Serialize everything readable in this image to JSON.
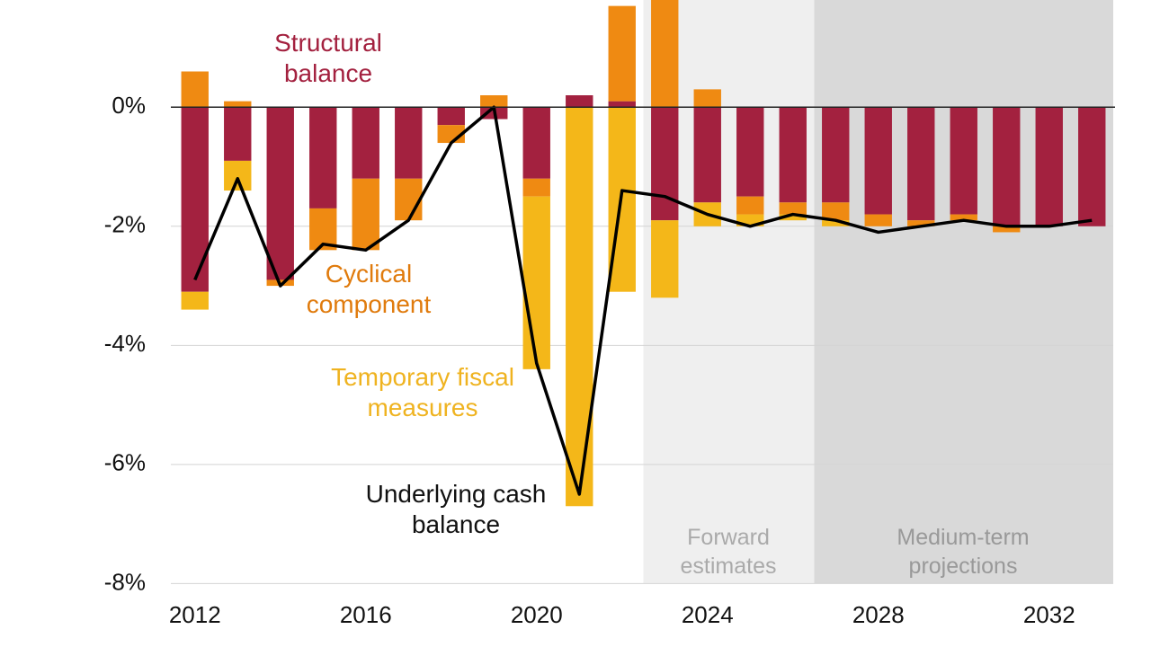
{
  "chart_data": {
    "type": "bar",
    "stacked": true,
    "categories": [
      "2012",
      null,
      null,
      null,
      "2016",
      null,
      null,
      null,
      "2020",
      null,
      null,
      null,
      "2024",
      null,
      null,
      null,
      "2028",
      null,
      null,
      null,
      "2032",
      null
    ],
    "series": [
      {
        "name": "Structural balance",
        "color": "#a3213f",
        "type": "bar",
        "values": [
          -3.1,
          -0.9,
          -2.9,
          -1.7,
          -1.2,
          -1.2,
          -0.3,
          -0.2,
          -1.2,
          0.2,
          0.1,
          -1.9,
          -1.6,
          -1.5,
          -1.6,
          -1.6,
          -1.8,
          -1.9,
          -1.8,
          -2.0,
          -2.0,
          -2.0
        ]
      },
      {
        "name": "Cyclical component",
        "color": "#ef8a12",
        "type": "bar",
        "values": [
          0.6,
          0.1,
          -0.1,
          -0.7,
          -1.2,
          -0.7,
          -0.3,
          0.2,
          -0.3,
          0,
          1.6,
          1.8,
          0.3,
          -0.3,
          -0.2,
          -0.3,
          -0.2,
          -0.1,
          -0.1,
          -0.1,
          0,
          0
        ]
      },
      {
        "name": "Temporary fiscal measures",
        "color": "#f4b719",
        "type": "bar",
        "values": [
          -0.3,
          -0.5,
          0,
          0,
          0,
          0,
          0,
          0,
          -2.9,
          -6.7,
          -3.1,
          -1.3,
          -0.4,
          -0.2,
          -0.1,
          -0.1,
          0,
          0,
          0,
          0,
          0,
          0
        ]
      },
      {
        "name": "Underlying cash balance",
        "color": "#000000",
        "type": "line",
        "values": [
          -2.9,
          -1.2,
          -3.0,
          -2.3,
          -2.4,
          -1.9,
          -0.6,
          0.0,
          -4.3,
          -6.5,
          -1.4,
          -1.5,
          -1.8,
          -2.0,
          -1.8,
          -1.9,
          -2.1,
          -2.0,
          -1.9,
          -2.0,
          -2.0,
          -1.9
        ]
      }
    ],
    "ylim": [
      -8,
      1.8
    ],
    "yticks": [
      {
        "value": 0,
        "label": "0%"
      },
      {
        "value": -2,
        "label": "-2%"
      },
      {
        "value": -4,
        "label": "-4%"
      },
      {
        "value": -6,
        "label": "-6%"
      },
      {
        "value": -8,
        "label": "-8%"
      }
    ],
    "grid": true,
    "regions": [
      {
        "label": "Forward estimates",
        "color": "#efefef"
      },
      {
        "label": "Medium-term projections",
        "color": "#d9d9d9"
      }
    ]
  }
}
